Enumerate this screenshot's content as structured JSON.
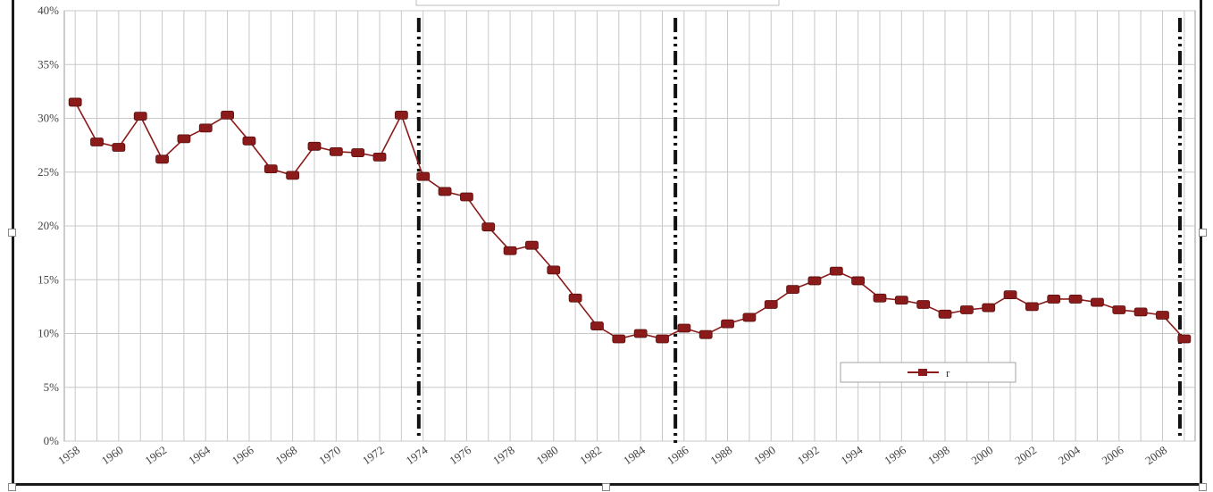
{
  "chart_data": {
    "type": "line",
    "title": "",
    "xlabel": "",
    "ylabel": "",
    "x": [
      1958,
      1959,
      1960,
      1961,
      1962,
      1963,
      1964,
      1965,
      1966,
      1967,
      1968,
      1969,
      1970,
      1971,
      1972,
      1973,
      1974,
      1975,
      1976,
      1977,
      1978,
      1979,
      1980,
      1981,
      1982,
      1983,
      1984,
      1985,
      1986,
      1987,
      1988,
      1989,
      1990,
      1991,
      1992,
      1993,
      1994,
      1995,
      1996,
      1997,
      1998,
      1999,
      2000,
      2001,
      2002,
      2003,
      2004,
      2005,
      2006,
      2007,
      2008,
      2009
    ],
    "x_tick_labels": [
      "1958",
      "1960",
      "1962",
      "1964",
      "1966",
      "1968",
      "1970",
      "1972",
      "1974",
      "1976",
      "1978",
      "1980",
      "1982",
      "1984",
      "1986",
      "1988",
      "1990",
      "1992",
      "1994",
      "1996",
      "1998",
      "2000",
      "2002",
      "2004",
      "2006",
      "2008"
    ],
    "y_tick_labels": [
      "0%",
      "5%",
      "10%",
      "15%",
      "20%",
      "25%",
      "30%",
      "35%",
      "40%"
    ],
    "ylim": [
      0,
      40
    ],
    "xlim": [
      1957.5,
      2009.5
    ],
    "grid": true,
    "legend_position": "bottom-right",
    "series": [
      {
        "name": "r",
        "color": "#8b1a1a",
        "marker": "square",
        "values": [
          31.5,
          27.8,
          27.3,
          30.2,
          26.2,
          28.1,
          29.1,
          30.3,
          27.9,
          25.3,
          24.7,
          27.4,
          26.9,
          26.8,
          26.4,
          30.3,
          24.6,
          23.2,
          22.7,
          19.9,
          17.7,
          18.2,
          15.9,
          13.3,
          10.7,
          9.5,
          10.0,
          9.5,
          10.5,
          9.9,
          10.9,
          11.5,
          12.7,
          14.1,
          14.9,
          15.8,
          14.9,
          13.3,
          13.1,
          12.7,
          11.8,
          12.2,
          12.4,
          13.6,
          12.5,
          13.2,
          13.2,
          12.9,
          12.2,
          12.0,
          11.7,
          9.5
        ]
      }
    ],
    "vertical_markers": [
      1973.8,
      1985.6,
      2008.8
    ]
  }
}
